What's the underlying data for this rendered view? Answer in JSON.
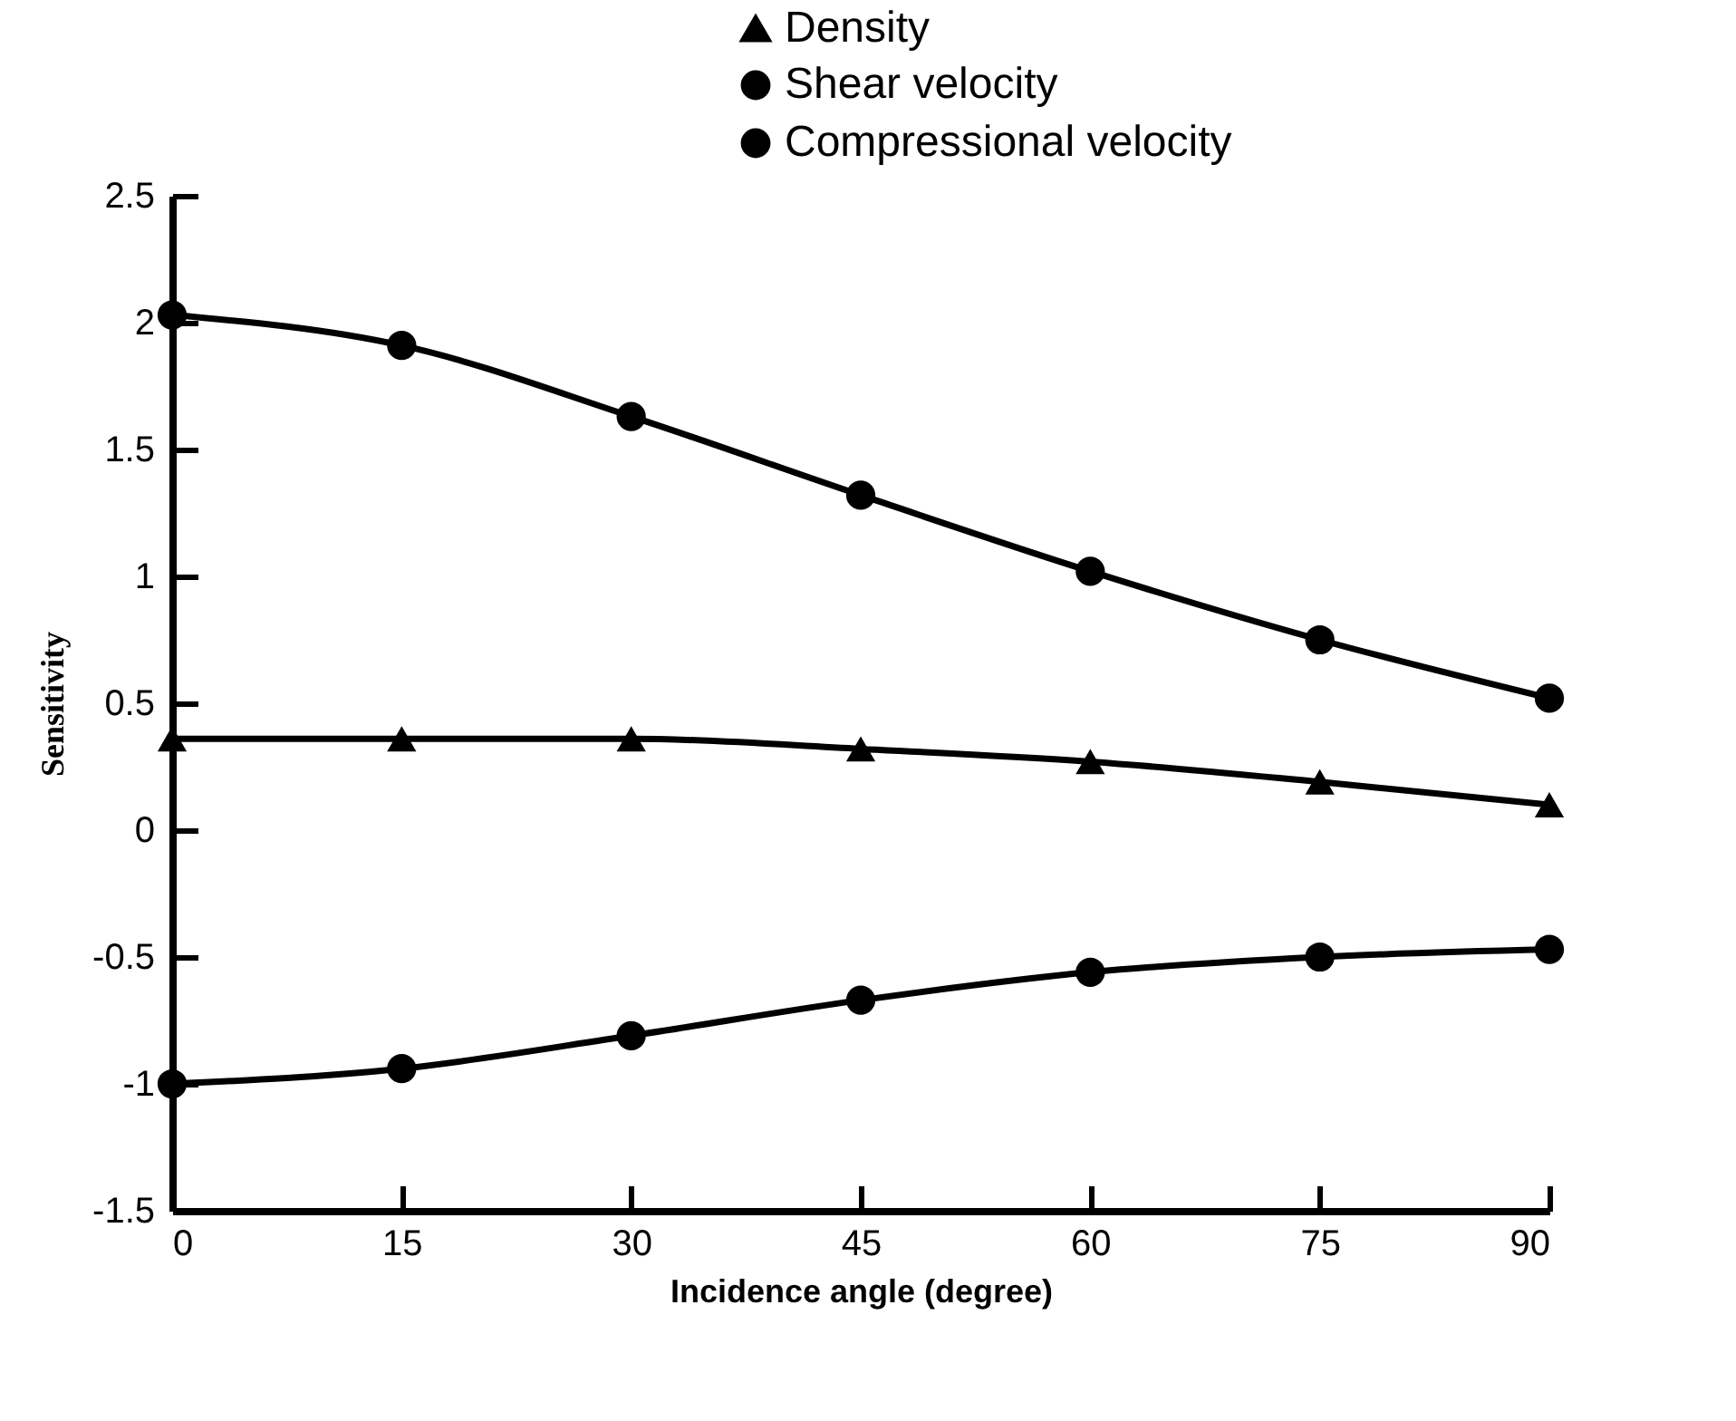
{
  "chart_data": {
    "type": "line",
    "xlabel": "Incidence angle (degree)",
    "ylabel": "Sensitivity",
    "x": [
      0,
      15,
      30,
      45,
      60,
      75,
      90
    ],
    "series": [
      {
        "name": "Density",
        "color": "#000000",
        "marker": "triangle",
        "values": [
          0.36,
          0.36,
          0.36,
          0.32,
          0.27,
          0.19,
          0.1
        ]
      },
      {
        "name": "Shear velocity",
        "color": "#000000",
        "marker": "circle",
        "values": [
          2.03,
          1.91,
          1.63,
          1.32,
          1.02,
          0.75,
          0.52
        ]
      },
      {
        "name": "Compressional velocity",
        "color": "#000000",
        "marker": "circle",
        "values": [
          -1.0,
          -0.94,
          -0.81,
          -0.67,
          -0.56,
          -0.5,
          -0.47
        ]
      }
    ],
    "xlim": [
      0,
      90
    ],
    "xticks": [
      0,
      15,
      30,
      45,
      60,
      75,
      90
    ],
    "ylim": [
      -1.5,
      2.5
    ],
    "yticks": [
      -1.5,
      -1,
      -0.5,
      0,
      0.5,
      1,
      1.5,
      2,
      2.5
    ],
    "grid": false,
    "legend": "top right",
    "line_style": "solid"
  }
}
